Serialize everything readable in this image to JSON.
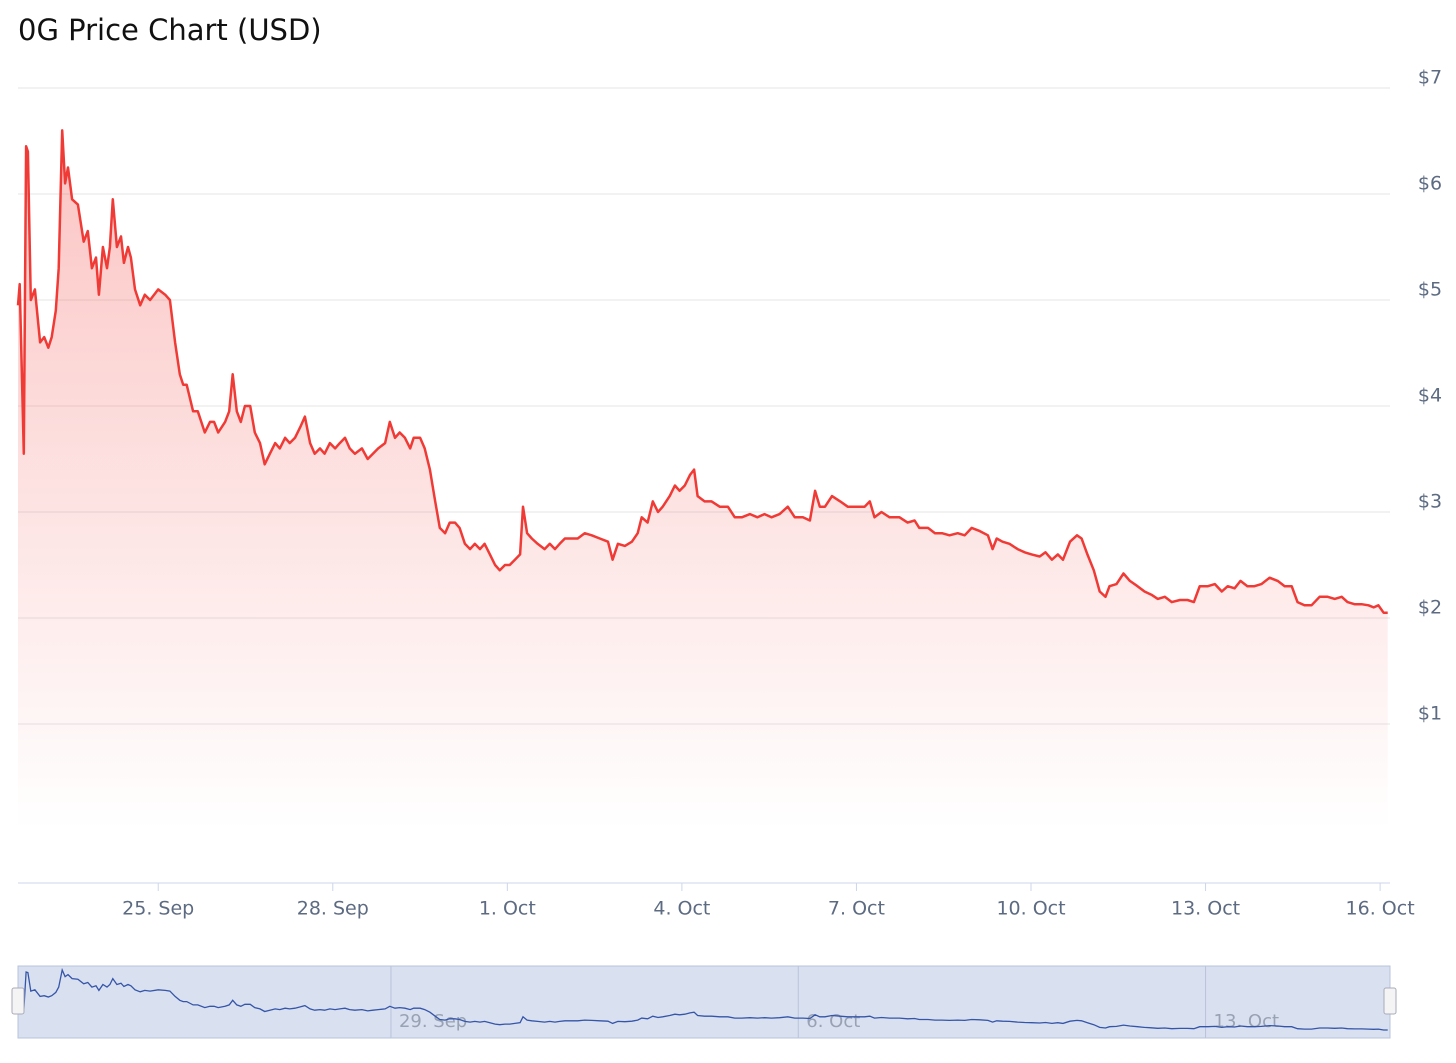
{
  "chart_data": {
    "type": "area",
    "title": "0G Price Chart (USD)",
    "color": "#f03a35",
    "x": [
      22.59,
      22.62,
      22.69,
      22.73,
      22.76,
      22.81,
      22.88,
      22.97,
      23.04,
      23.11,
      23.17,
      23.24,
      23.29,
      23.35,
      23.4,
      23.45,
      23.52,
      23.62,
      23.72,
      23.79,
      23.86,
      23.93,
      23.98,
      24.05,
      24.12,
      24.17,
      24.22,
      24.29,
      24.36,
      24.41,
      24.48,
      24.53,
      24.6,
      24.69,
      24.77,
      24.86,
      25.0,
      25.12,
      25.2,
      25.29,
      25.37,
      25.43,
      25.49,
      25.6,
      25.68,
      25.8,
      25.89,
      25.96,
      26.03,
      26.15,
      26.22,
      26.28,
      26.35,
      26.42,
      26.49,
      26.58,
      26.66,
      26.75,
      26.83,
      26.92,
      27.01,
      27.09,
      27.18,
      27.26,
      27.35,
      27.44,
      27.52,
      27.61,
      27.69,
      27.78,
      27.86,
      27.95,
      28.04,
      28.12,
      28.21,
      28.29,
      28.38,
      28.5,
      28.6,
      28.69,
      28.78,
      28.9,
      28.98,
      29.07,
      29.15,
      29.24,
      29.33,
      29.39,
      29.5,
      29.58,
      29.67,
      29.76,
      29.84,
      29.93,
      30.01,
      30.1,
      30.18,
      30.27,
      30.36,
      30.44,
      30.53,
      30.61,
      30.7,
      30.79,
      30.87,
      30.96,
      31.04,
      31.13,
      31.22,
      31.27,
      31.34,
      31.42,
      31.52,
      31.64,
      31.73,
      31.82,
      31.9,
      31.99,
      32.07,
      32.21,
      32.33,
      32.45,
      32.59,
      32.73,
      32.81,
      32.9,
      33.02,
      33.14,
      33.24,
      33.31,
      33.41,
      33.5,
      33.59,
      33.67,
      33.79,
      33.88,
      33.96,
      34.05,
      34.14,
      34.21,
      34.27,
      34.39,
      34.51,
      34.65,
      34.79,
      34.91,
      35.03,
      35.17,
      35.3,
      35.42,
      35.54,
      35.68,
      35.82,
      35.94,
      36.08,
      36.2,
      36.29,
      36.37,
      36.46,
      36.58,
      36.72,
      36.85,
      36.99,
      37.14,
      37.23,
      37.31,
      37.43,
      37.57,
      37.74,
      37.88,
      38.0,
      38.08,
      38.23,
      38.35,
      38.47,
      38.6,
      38.74,
      38.86,
      38.98,
      39.12,
      39.26,
      39.34,
      39.41,
      39.51,
      39.63,
      39.77,
      39.89,
      40.01,
      40.15,
      40.25,
      40.36,
      40.46,
      40.55,
      40.67,
      40.79,
      40.87,
      40.97,
      41.08,
      41.18,
      41.28,
      41.35,
      41.47,
      41.59,
      41.7,
      41.83,
      41.95,
      42.07,
      42.18,
      42.3,
      42.42,
      42.56,
      42.69,
      42.8,
      42.9,
      43.04,
      43.16,
      43.28,
      43.38,
      43.5,
      43.6,
      43.72,
      43.84,
      43.96,
      44.1,
      44.24,
      44.36,
      44.48,
      44.58,
      44.7,
      44.82,
      44.96,
      45.1,
      45.22,
      45.34,
      45.44,
      45.56,
      45.68,
      45.8,
      45.89,
      45.97,
      46.06,
      46.13
    ],
    "values": [
      4.95,
      5.15,
      3.55,
      6.45,
      6.4,
      5.0,
      5.1,
      4.6,
      4.65,
      4.55,
      4.65,
      4.9,
      5.3,
      6.6,
      6.1,
      6.25,
      5.95,
      5.9,
      5.55,
      5.65,
      5.3,
      5.4,
      5.05,
      5.5,
      5.3,
      5.5,
      5.95,
      5.5,
      5.6,
      5.35,
      5.5,
      5.4,
      5.1,
      4.95,
      5.05,
      5.0,
      5.1,
      5.05,
      5.0,
      4.6,
      4.3,
      4.2,
      4.2,
      3.95,
      3.95,
      3.75,
      3.85,
      3.85,
      3.75,
      3.85,
      3.95,
      4.3,
      3.95,
      3.85,
      4.0,
      4.0,
      3.75,
      3.65,
      3.45,
      3.55,
      3.65,
      3.6,
      3.7,
      3.65,
      3.7,
      3.8,
      3.9,
      3.65,
      3.55,
      3.6,
      3.55,
      3.65,
      3.6,
      3.65,
      3.7,
      3.6,
      3.55,
      3.6,
      3.5,
      3.55,
      3.6,
      3.65,
      3.85,
      3.7,
      3.75,
      3.7,
      3.6,
      3.7,
      3.7,
      3.6,
      3.4,
      3.1,
      2.85,
      2.8,
      2.9,
      2.9,
      2.85,
      2.7,
      2.65,
      2.7,
      2.65,
      2.7,
      2.6,
      2.5,
      2.45,
      2.5,
      2.5,
      2.55,
      2.6,
      3.05,
      2.8,
      2.75,
      2.7,
      2.65,
      2.7,
      2.65,
      2.7,
      2.75,
      2.75,
      2.75,
      2.8,
      2.78,
      2.75,
      2.72,
      2.55,
      2.7,
      2.68,
      2.72,
      2.8,
      2.95,
      2.9,
      3.1,
      3.0,
      3.05,
      3.15,
      3.25,
      3.2,
      3.25,
      3.35,
      3.4,
      3.15,
      3.1,
      3.1,
      3.05,
      3.05,
      2.95,
      2.95,
      2.98,
      2.95,
      2.98,
      2.95,
      2.98,
      3.05,
      2.95,
      2.95,
      2.92,
      3.2,
      3.05,
      3.05,
      3.15,
      3.1,
      3.05,
      3.05,
      3.05,
      3.1,
      2.95,
      3.0,
      2.95,
      2.95,
      2.9,
      2.92,
      2.85,
      2.85,
      2.8,
      2.8,
      2.78,
      2.8,
      2.78,
      2.85,
      2.82,
      2.78,
      2.65,
      2.75,
      2.72,
      2.7,
      2.65,
      2.62,
      2.6,
      2.58,
      2.62,
      2.55,
      2.6,
      2.55,
      2.72,
      2.78,
      2.75,
      2.6,
      2.45,
      2.25,
      2.2,
      2.3,
      2.32,
      2.42,
      2.35,
      2.3,
      2.25,
      2.22,
      2.18,
      2.2,
      2.15,
      2.17,
      2.17,
      2.15,
      2.3,
      2.3,
      2.32,
      2.25,
      2.3,
      2.28,
      2.35,
      2.3,
      2.3,
      2.32,
      2.38,
      2.35,
      2.3,
      2.3,
      2.15,
      2.12,
      2.12,
      2.2,
      2.2,
      2.18,
      2.2,
      2.15,
      2.13,
      2.13,
      2.12,
      2.1,
      2.12,
      2.05,
      2.05
    ],
    "xlim": [
      22.59,
      46.17
    ],
    "xticks": [
      {
        "value": 25,
        "label": "25. Sep"
      },
      {
        "value": 28,
        "label": "28. Sep"
      },
      {
        "value": 31,
        "label": "1. Oct"
      },
      {
        "value": 34,
        "label": "4. Oct"
      },
      {
        "value": 37,
        "label": "7. Oct"
      },
      {
        "value": 40,
        "label": "10. Oct"
      },
      {
        "value": 43,
        "label": "13. Oct"
      },
      {
        "value": 46,
        "label": "16. Oct"
      }
    ],
    "ylim": [
      -0.5,
      7
    ],
    "yticks": [
      {
        "value": 1,
        "label": "$1"
      },
      {
        "value": 2,
        "label": "$2"
      },
      {
        "value": 3,
        "label": "$3"
      },
      {
        "value": 4,
        "label": "$4"
      },
      {
        "value": 5,
        "label": "$5"
      },
      {
        "value": 6,
        "label": "$6"
      },
      {
        "value": 7,
        "label": "$7"
      }
    ],
    "grid": true,
    "navigator": {
      "color": "#3555a8",
      "xticks": [
        {
          "value": 29,
          "label": "29. Sep"
        },
        {
          "value": 36,
          "label": "6. Oct"
        },
        {
          "value": 43,
          "label": "13. Oct"
        }
      ]
    }
  }
}
